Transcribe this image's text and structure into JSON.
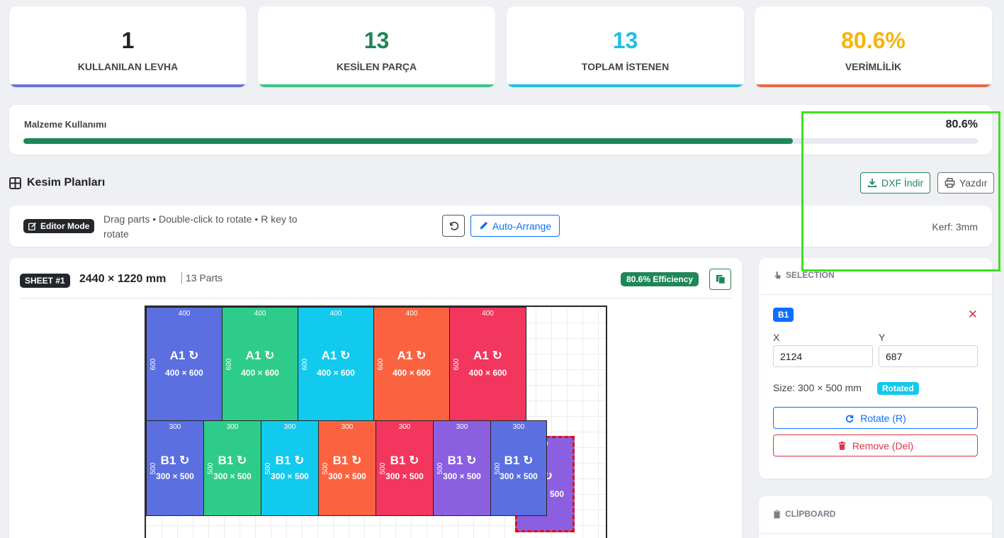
{
  "stats": [
    {
      "value": "1",
      "label": "KULLANILAN LEVHA",
      "color": "#222222",
      "bar": "#6a74cf"
    },
    {
      "value": "13",
      "label": "KESİLEN PARÇA",
      "color": "#1e8657",
      "bar": "#3ec486"
    },
    {
      "value": "13",
      "label": "TOPLAM İSTENEN",
      "color": "#1fbfe0",
      "bar": "#1fbfe0"
    },
    {
      "value": "80.6%",
      "label": "VERİMLİLİK",
      "color": "#f6b40b",
      "bar": "#ea6a48"
    }
  ],
  "utilization": {
    "title": "Malzeme Kullanımı",
    "value": "80.6%",
    "fill_fraction": 0.806
  },
  "plans": {
    "title": "Kesim Planları",
    "dxf_label": "DXF İndir",
    "print_label": "Yazdır"
  },
  "editor": {
    "mode_label": "Editor Mode",
    "hint_line1": "Drag parts • Double-click to rotate • R key to",
    "hint_line2": "rotate",
    "auto_arrange_label": "Auto-Arrange",
    "kerf": "Kerf: 3mm"
  },
  "sheet": {
    "badge": "SHEET #1",
    "size": "2440 × 1220 mm",
    "parts": "13 Parts",
    "efficiency": "80.6% Efficiency"
  },
  "parts_row_a": [
    {
      "name": "A1 ↻",
      "dims": "400 × 600",
      "w": "400",
      "h": "600",
      "color": "#5b6fe0"
    },
    {
      "name": "A1 ↻",
      "dims": "400 × 600",
      "w": "400",
      "h": "600",
      "color": "#2ecc8a"
    },
    {
      "name": "A1 ↻",
      "dims": "400 × 600",
      "w": "400",
      "h": "600",
      "color": "#12c9ee"
    },
    {
      "name": "A1 ↻",
      "dims": "400 × 600",
      "w": "400",
      "h": "600",
      "color": "#fb6340"
    },
    {
      "name": "A1 ↻",
      "dims": "400 × 600",
      "w": "400",
      "h": "600",
      "color": "#f3365e"
    }
  ],
  "parts_row_b": [
    {
      "name": "B1 ↻",
      "dims": "300 × 500",
      "w": "300",
      "h": "500",
      "color": "#5b6fe0"
    },
    {
      "name": "B1 ↻",
      "dims": "300 × 500",
      "w": "300",
      "h": "500",
      "color": "#2ecc8a"
    },
    {
      "name": "B1 ↻",
      "dims": "300 × 500",
      "w": "300",
      "h": "500",
      "color": "#12c9ee"
    },
    {
      "name": "B1 ↻",
      "dims": "300 × 500",
      "w": "300",
      "h": "500",
      "color": "#fb6340"
    },
    {
      "name": "B1 ↻",
      "dims": "300 × 500",
      "w": "300",
      "h": "500",
      "color": "#f3365e"
    },
    {
      "name": "B1 ↻",
      "dims": "300 × 500",
      "w": "300",
      "h": "500",
      "color": "#8b5fe0"
    },
    {
      "name": "B1 ↻",
      "dims": "300 × 500",
      "w": "300",
      "h": "500",
      "color": "#5b6fe0"
    }
  ],
  "dragged_part": {
    "w": "0",
    "name": "↻",
    "dims": "500",
    "color": "#8b5fe0"
  },
  "selection": {
    "title": "SELECTION",
    "badge": "B1",
    "x_label": "X",
    "y_label": "Y",
    "x": "2124",
    "y": "687",
    "size": "Size: 300 × 500 mm",
    "rotated": "Rotated",
    "rotate_label": "Rotate (R)",
    "remove_label": "Remove (Del)"
  },
  "clipboard": {
    "title": "CLİPBOARD"
  }
}
